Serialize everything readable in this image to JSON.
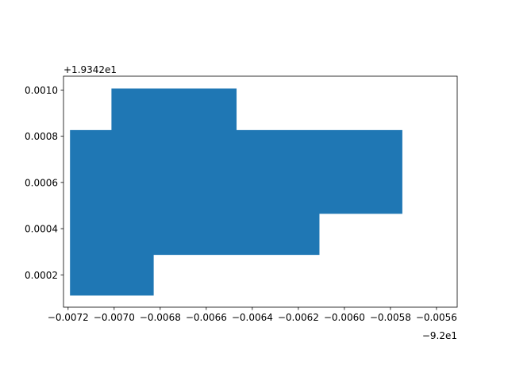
{
  "chart_data": {
    "type": "area",
    "title": "",
    "xlabel": "",
    "ylabel": "",
    "x_offset_text": "−9.2e1",
    "y_offset_text": "+1.9342e1",
    "x_ticks": [
      {
        "value": -0.0072,
        "label": "−0.0072"
      },
      {
        "value": -0.007,
        "label": "−0.0070"
      },
      {
        "value": -0.0068,
        "label": "−0.0068"
      },
      {
        "value": -0.0066,
        "label": "−0.0066"
      },
      {
        "value": -0.0064,
        "label": "−0.0064"
      },
      {
        "value": -0.0062,
        "label": "−0.0062"
      },
      {
        "value": -0.006,
        "label": "−0.0060"
      },
      {
        "value": -0.0058,
        "label": "−0.0058"
      },
      {
        "value": -0.0056,
        "label": "−0.0056"
      }
    ],
    "y_ticks": [
      {
        "value": 0.0002,
        "label": "0.0002"
      },
      {
        "value": 0.0004,
        "label": "0.0004"
      },
      {
        "value": 0.0006,
        "label": "0.0006"
      },
      {
        "value": 0.0008,
        "label": "0.0008"
      },
      {
        "value": 0.001,
        "label": "0.0010"
      }
    ],
    "xlim": [
      -0.00722,
      -0.00551
    ],
    "ylim": [
      6e-05,
      0.00106
    ],
    "grid": false,
    "polygon_color": "#1f77b4",
    "polygon": [
      {
        "x": -0.00719,
        "y": 0.000112
      },
      {
        "x": -0.00683,
        "y": 0.000112
      },
      {
        "x": -0.00683,
        "y": 0.000288
      },
      {
        "x": -0.00611,
        "y": 0.000288
      },
      {
        "x": -0.00611,
        "y": 0.000466
      },
      {
        "x": -0.00575,
        "y": 0.000466
      },
      {
        "x": -0.00575,
        "y": 0.000825
      },
      {
        "x": -0.00647,
        "y": 0.000825
      },
      {
        "x": -0.00647,
        "y": 0.001005
      },
      {
        "x": -0.00701,
        "y": 0.001005
      },
      {
        "x": -0.00701,
        "y": 0.000825
      },
      {
        "x": -0.00719,
        "y": 0.000825
      }
    ]
  }
}
